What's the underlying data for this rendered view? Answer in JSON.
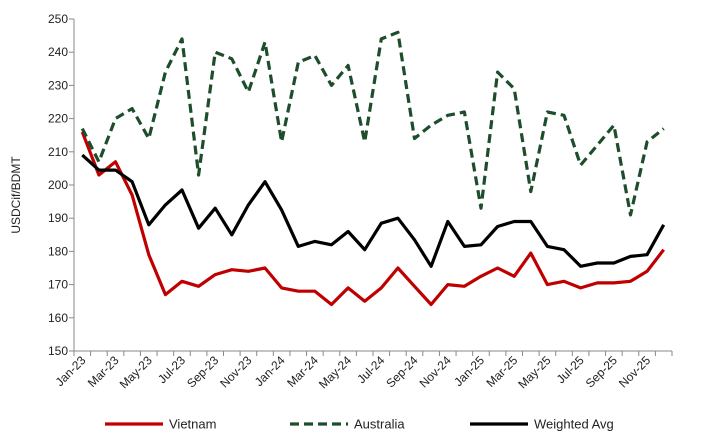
{
  "chart_data": {
    "type": "line",
    "title": "",
    "xlabel": "",
    "ylabel": "USDCif/BDMT",
    "ylim": [
      150,
      250
    ],
    "yticks": [
      150,
      160,
      170,
      180,
      190,
      200,
      210,
      220,
      230,
      240,
      250
    ],
    "grid": false,
    "legend_position": "bottom",
    "x": [
      "Jan-23",
      "Feb-23",
      "Mar-23",
      "Apr-23",
      "May-23",
      "Jun-23",
      "Jul-23",
      "Aug-23",
      "Sep-23",
      "Oct-23",
      "Nov-23",
      "Dec-23",
      "Jan-24",
      "Feb-24",
      "Mar-24",
      "Apr-24",
      "May-24",
      "Jun-24",
      "Jul-24",
      "Aug-24",
      "Sep-24",
      "Oct-24",
      "Nov-24",
      "Dec-24",
      "Jan-25",
      "Feb-25",
      "Mar-25",
      "Apr-25",
      "May-25",
      "Jun-25",
      "Jul-25",
      "Aug-25",
      "Sep-25",
      "Oct-25",
      "Nov-25",
      "Dec-25"
    ],
    "xtick_labels": [
      "Jan-23",
      "Mar-23",
      "May-23",
      "Jul-23",
      "Sep-23",
      "Nov-23",
      "Jan-24",
      "Mar-24",
      "May-24",
      "Jul-24",
      "Sep-24",
      "Nov-24",
      "Jan-25",
      "Mar-25",
      "May-25",
      "Jul-25",
      "Sep-25",
      "Nov-25"
    ],
    "series": [
      {
        "name": "Vietnam",
        "color": "#c00000",
        "style": "solid",
        "values": [
          216,
          203,
          207,
          197,
          179,
          167,
          171,
          169.5,
          173,
          174.5,
          174,
          175,
          169,
          168,
          168,
          164,
          169,
          165,
          169,
          175,
          169.5,
          164,
          170,
          169.5,
          172.5,
          175,
          172.5,
          179.5,
          170,
          171,
          169,
          170.5,
          170.5,
          171,
          174,
          180.5
        ]
      },
      {
        "name": "Australia",
        "color": "#1e4d2b",
        "style": "dashed",
        "values": [
          217,
          207,
          220,
          223,
          214,
          234,
          244,
          203,
          240,
          238,
          228,
          243,
          213,
          237,
          239,
          230,
          236,
          213,
          244,
          246,
          214,
          218,
          221,
          222,
          193,
          234,
          229,
          198,
          222,
          221,
          206,
          212,
          218,
          191,
          213,
          217
        ]
      },
      {
        "name": "Weighted Avg",
        "color": "#000000",
        "style": "solid",
        "values": [
          209,
          204.5,
          204.5,
          201,
          188,
          194,
          198.5,
          187,
          193,
          185,
          194,
          201,
          192.5,
          181.5,
          183,
          182,
          186,
          180.5,
          188.5,
          190,
          183.5,
          175.5,
          189,
          181.5,
          182,
          187.5,
          189,
          189,
          181.5,
          180.5,
          175.5,
          176.5,
          176.5,
          178.5,
          179,
          188
        ]
      }
    ]
  }
}
